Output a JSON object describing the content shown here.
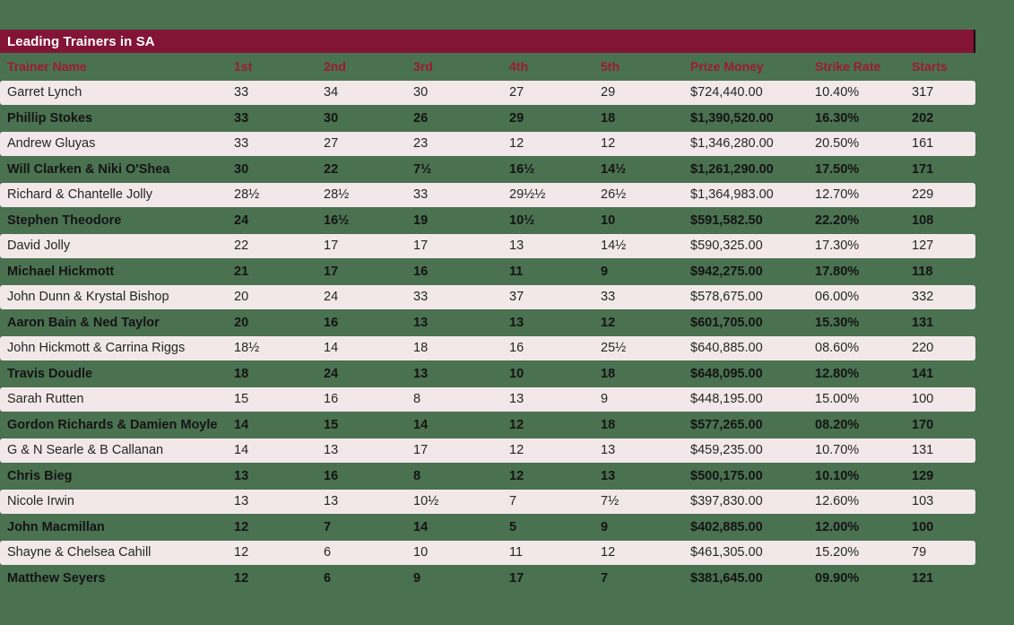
{
  "title": "Leading Trainers in SA",
  "colors": {
    "background_green": "#4A7150",
    "title_bar_maroon": "#821536",
    "title_bar_edge": "#1C0810",
    "header_text_maroon": "#9D1B33",
    "row_pink": "#F2E8EA",
    "row_text_dark": "#1D1D1B",
    "title_text": "#FFFFFF"
  },
  "chart_data": {
    "type": "table",
    "title": "Leading Trainers in SA",
    "columns": [
      "Trainer Name",
      "1st",
      "2nd",
      "3rd",
      "4th",
      "5th",
      "Prize Money",
      "Strike Rate",
      "Starts"
    ],
    "rows": [
      [
        "Garret Lynch",
        "33",
        "34",
        "30",
        "27",
        "29",
        "$724,440.00",
        "10.40%",
        "317"
      ],
      [
        "Phillip Stokes",
        "33",
        "30",
        "26",
        "29",
        "18",
        "$1,390,520.00",
        "16.30%",
        "202"
      ],
      [
        "Andrew Gluyas",
        "33",
        "27",
        "23",
        "12",
        "12",
        "$1,346,280.00",
        "20.50%",
        "161"
      ],
      [
        "Will Clarken & Niki O'Shea",
        "30",
        "22",
        "7½",
        "16½",
        "14½",
        "$1,261,290.00",
        "17.50%",
        "171"
      ],
      [
        "Richard & Chantelle Jolly",
        "28½",
        "28½",
        "33",
        "29½½",
        "26½",
        "$1,364,983.00",
        "12.70%",
        "229"
      ],
      [
        "Stephen Theodore",
        "24",
        "16½",
        "19",
        "10½",
        "10",
        "$591,582.50",
        "22.20%",
        "108"
      ],
      [
        "David Jolly",
        "22",
        "17",
        "17",
        "13",
        "14½",
        "$590,325.00",
        "17.30%",
        "127"
      ],
      [
        "Michael Hickmott",
        "21",
        "17",
        "16",
        "11",
        "9",
        "$942,275.00",
        "17.80%",
        "118"
      ],
      [
        "John Dunn & Krystal Bishop",
        "20",
        "24",
        "33",
        "37",
        "33",
        "$578,675.00",
        "06.00%",
        "332"
      ],
      [
        "Aaron Bain & Ned Taylor",
        "20",
        "16",
        "13",
        "13",
        "12",
        "$601,705.00",
        "15.30%",
        "131"
      ],
      [
        "John Hickmott & Carrina Riggs",
        "18½",
        "14",
        "18",
        "16",
        "25½",
        "$640,885.00",
        "08.60%",
        "220"
      ],
      [
        "Travis Doudle",
        "18",
        "24",
        "13",
        "10",
        "18",
        "$648,095.00",
        "12.80%",
        "141"
      ],
      [
        "Sarah Rutten",
        "15",
        "16",
        "8",
        "13",
        "9",
        "$448,195.00",
        "15.00%",
        "100"
      ],
      [
        "Gordon Richards & Damien Moyle",
        "14",
        "15",
        "14",
        "12",
        "18",
        "$577,265.00",
        "08.20%",
        "170"
      ],
      [
        "G & N Searle & B Callanan",
        "14",
        "13",
        "17",
        "12",
        "13",
        "$459,235.00",
        "10.70%",
        "131"
      ],
      [
        "Chris Bieg",
        "13",
        "16",
        "8",
        "12",
        "13",
        "$500,175.00",
        "10.10%",
        "129"
      ],
      [
        "Nicole Irwin",
        "13",
        "13",
        "10½",
        "7",
        "7½",
        "$397,830.00",
        "12.60%",
        "103"
      ],
      [
        "John Macmillan",
        "12",
        "7",
        "14",
        "5",
        "9",
        "$402,885.00",
        "12.00%",
        "100"
      ],
      [
        "Shayne & Chelsea Cahill",
        "12",
        "6",
        "10",
        "11",
        "12",
        "$461,305.00",
        "15.20%",
        "79"
      ],
      [
        "Matthew Seyers",
        "12",
        "6",
        "9",
        "17",
        "7",
        "$381,645.00",
        "09.90%",
        "121"
      ]
    ]
  }
}
